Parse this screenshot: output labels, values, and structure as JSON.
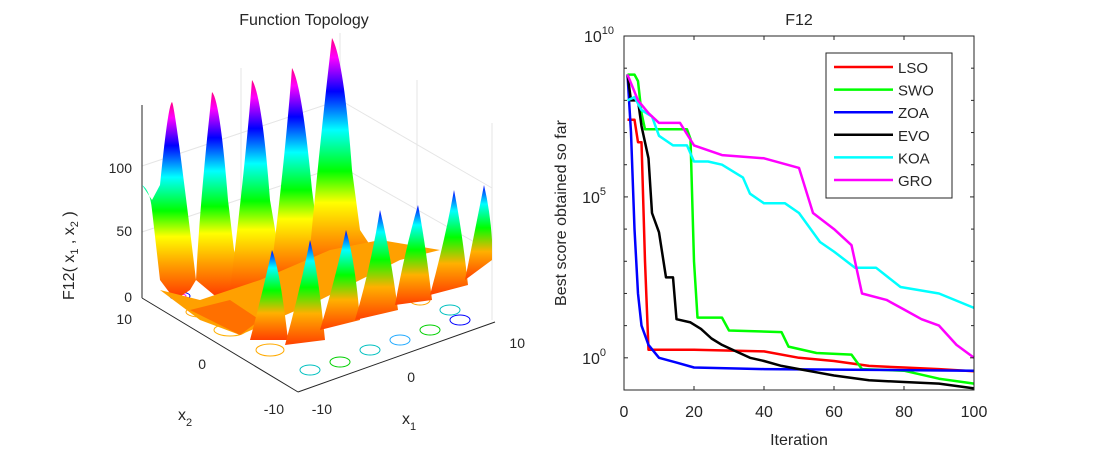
{
  "chart_data": [
    {
      "type": "surface3d",
      "title": "Function Topology",
      "xlabel": "x1",
      "ylabel": "x2",
      "zlabel": "F12( x1 , x2 )",
      "x_ticks": [
        "-10",
        "0",
        "10"
      ],
      "y_ticks": [
        "-10",
        "0",
        "10"
      ],
      "z_ticks": [
        "0",
        "50",
        "100"
      ],
      "xlim": [
        -10,
        10
      ],
      "ylim": [
        -10,
        10
      ],
      "zlim": [
        0,
        140
      ],
      "colormap": "hsv",
      "description": "Multimodal surface with tall ridges along one side, contour lines projected on the floor"
    },
    {
      "type": "line",
      "title": "F12",
      "xlabel": "Iteration",
      "ylabel": "Best score obtained so far",
      "yscale": "log",
      "xlim": [
        0,
        100
      ],
      "ylim_log10": [
        -1,
        10
      ],
      "x_ticks": [
        "0",
        "20",
        "40",
        "60",
        "80",
        "100"
      ],
      "y_ticks": [
        {
          "base": "10",
          "exp": "0"
        },
        {
          "base": "10",
          "exp": "5"
        },
        {
          "base": "10",
          "exp": "10"
        }
      ],
      "legend_position": "top-right",
      "series": [
        {
          "name": "LSO",
          "color": "#ff0000",
          "points_log10": [
            [
              1,
              7.4
            ],
            [
              3,
              7.4
            ],
            [
              4,
              6.7
            ],
            [
              5,
              6.7
            ],
            [
              6,
              3.0
            ],
            [
              7,
              0.25
            ],
            [
              20,
              0.25
            ],
            [
              40,
              0.2
            ],
            [
              50,
              0.0
            ],
            [
              60,
              -0.1
            ],
            [
              70,
              -0.25
            ],
            [
              80,
              -0.3
            ],
            [
              90,
              -0.35
            ],
            [
              100,
              -0.42
            ]
          ]
        },
        {
          "name": "SWO",
          "color": "#00ff00",
          "points_log10": [
            [
              1,
              8.8
            ],
            [
              3,
              8.8
            ],
            [
              4,
              8.6
            ],
            [
              5,
              7.6
            ],
            [
              6,
              7.1
            ],
            [
              18,
              7.1
            ],
            [
              19,
              6.8
            ],
            [
              20,
              3.0
            ],
            [
              21,
              1.25
            ],
            [
              28,
              1.25
            ],
            [
              30,
              0.85
            ],
            [
              45,
              0.8
            ],
            [
              47,
              0.35
            ],
            [
              55,
              0.15
            ],
            [
              65,
              0.1
            ],
            [
              68,
              -0.35
            ],
            [
              80,
              -0.4
            ],
            [
              90,
              -0.65
            ],
            [
              100,
              -0.8
            ]
          ]
        },
        {
          "name": "ZOA",
          "color": "#0000ff",
          "points_log10": [
            [
              1,
              8.8
            ],
            [
              2,
              7.0
            ],
            [
              3,
              4.0
            ],
            [
              4,
              2.0
            ],
            [
              5,
              1.0
            ],
            [
              7,
              0.4
            ],
            [
              10,
              0.0
            ],
            [
              15,
              -0.15
            ],
            [
              20,
              -0.3
            ],
            [
              40,
              -0.35
            ],
            [
              100,
              -0.4
            ]
          ]
        },
        {
          "name": "EVO",
          "color": "#000000",
          "points_log10": [
            [
              1,
              8.8
            ],
            [
              2,
              8.0
            ],
            [
              4,
              8.0
            ],
            [
              5,
              7.2
            ],
            [
              7,
              6.2
            ],
            [
              8,
              4.5
            ],
            [
              10,
              3.9
            ],
            [
              12,
              2.5
            ],
            [
              14,
              2.5
            ],
            [
              15,
              1.2
            ],
            [
              19,
              1.1
            ],
            [
              22,
              0.9
            ],
            [
              25,
              0.6
            ],
            [
              28,
              0.4
            ],
            [
              32,
              0.2
            ],
            [
              36,
              0.0
            ],
            [
              40,
              -0.1
            ],
            [
              45,
              -0.25
            ],
            [
              50,
              -0.35
            ],
            [
              55,
              -0.45
            ],
            [
              60,
              -0.55
            ],
            [
              70,
              -0.7
            ],
            [
              80,
              -0.75
            ],
            [
              90,
              -0.8
            ],
            [
              100,
              -0.95
            ]
          ]
        },
        {
          "name": "KOA",
          "color": "#00ffff",
          "points_log10": [
            [
              1,
              8.0
            ],
            [
              3,
              8.1
            ],
            [
              5,
              7.7
            ],
            [
              8,
              7.5
            ],
            [
              10,
              6.9
            ],
            [
              14,
              6.6
            ],
            [
              18,
              6.6
            ],
            [
              20,
              6.1
            ],
            [
              24,
              6.1
            ],
            [
              28,
              6.0
            ],
            [
              34,
              5.6
            ],
            [
              36,
              5.1
            ],
            [
              40,
              4.8
            ],
            [
              46,
              4.8
            ],
            [
              50,
              4.5
            ],
            [
              56,
              3.6
            ],
            [
              60,
              3.3
            ],
            [
              66,
              2.8
            ],
            [
              72,
              2.8
            ],
            [
              79,
              2.2
            ],
            [
              90,
              2.0
            ],
            [
              100,
              1.55
            ]
          ]
        },
        {
          "name": "GRO",
          "color": "#ff00ff",
          "points_log10": [
            [
              1,
              8.8
            ],
            [
              4,
              8.0
            ],
            [
              7,
              7.6
            ],
            [
              10,
              7.3
            ],
            [
              16,
              7.3
            ],
            [
              20,
              6.6
            ],
            [
              28,
              6.3
            ],
            [
              40,
              6.2
            ],
            [
              50,
              5.9
            ],
            [
              54,
              4.5
            ],
            [
              60,
              4.0
            ],
            [
              65,
              3.5
            ],
            [
              68,
              2.0
            ],
            [
              75,
              1.8
            ],
            [
              80,
              1.5
            ],
            [
              85,
              1.2
            ],
            [
              90,
              1.0
            ],
            [
              95,
              0.4
            ],
            [
              100,
              0.0
            ]
          ]
        }
      ]
    }
  ]
}
